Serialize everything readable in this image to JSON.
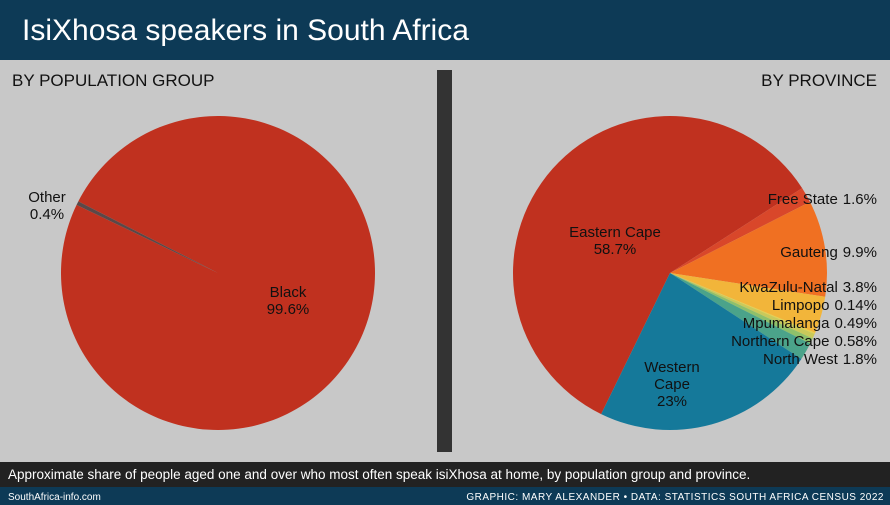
{
  "title": "IsiXhosa speakers in South Africa",
  "caption": "Approximate share of people aged one and over who most often speak isiXhosa at home, by population group and province.",
  "footer": {
    "site": "SouthAfrica-info.com",
    "credit": "GRAPHIC: MARY ALEXANDER • DATA: STATISTICS SOUTH AFRICA CENSUS 2022"
  },
  "chart_data": [
    {
      "type": "pie",
      "title": "BY POPULATION GROUP",
      "categories": [
        "Black",
        "Other"
      ],
      "values": [
        99.6,
        0.4
      ],
      "value_labels": [
        "99.6%",
        "0.4%"
      ],
      "colors": [
        "#c0311f",
        "#5a4848"
      ]
    },
    {
      "type": "pie",
      "title": "BY PROVINCE",
      "categories": [
        "Eastern Cape",
        "Free State",
        "Gauteng",
        "KwaZulu-Natal",
        "Limpopo",
        "Mpumalanga",
        "Northern Cape",
        "North West",
        "Western Cape"
      ],
      "values": [
        58.7,
        1.6,
        9.9,
        3.8,
        0.14,
        0.49,
        0.58,
        1.8,
        23
      ],
      "value_labels": [
        "58.7%",
        "1.6%",
        "9.9%",
        "3.8%",
        "0.14%",
        "0.49%",
        "0.58%",
        "1.8%",
        "23%"
      ],
      "colors": [
        "#c0311f",
        "#d9472a",
        "#f07022",
        "#f2b53a",
        "#e8d24a",
        "#c9c95a",
        "#8fc06a",
        "#4ba38a",
        "#15799a"
      ]
    }
  ]
}
